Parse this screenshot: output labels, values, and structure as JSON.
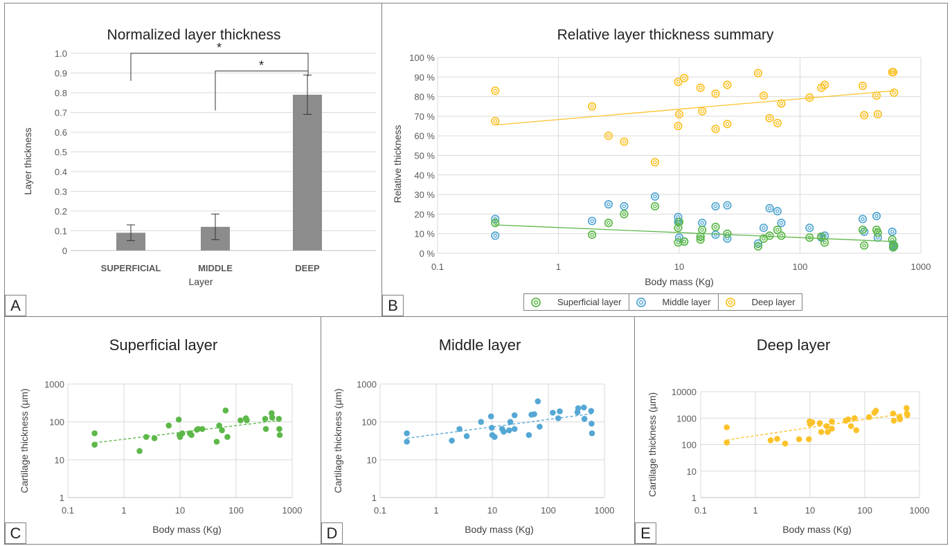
{
  "panels": {
    "A": {
      "letter": "A"
    },
    "B": {
      "letter": "B"
    },
    "C": {
      "letter": "C"
    },
    "D": {
      "letter": "D"
    },
    "E": {
      "letter": "E"
    }
  },
  "colors": {
    "superficial": "#5db84a",
    "middle": "#55a7d4",
    "deep": "#fcc22a",
    "bar": "#8c8c8c",
    "grid": "#d9d9d9"
  },
  "chart_data": [
    {
      "id": "A",
      "type": "bar",
      "title": "Normalized layer thickness",
      "xlabel": "Layer",
      "ylabel": "Layer thickness",
      "categories": [
        "SUPERFICIAL",
        "MIDDLE",
        "DEEP"
      ],
      "values": [
        0.09,
        0.12,
        0.79
      ],
      "error": [
        0.04,
        0.065,
        0.1
      ],
      "ylim": [
        0,
        1.0
      ],
      "yticks": [
        "0",
        "0.1",
        "0.2",
        "0.3",
        "0.4",
        "0.5",
        "0.6",
        "0.7",
        "0.8",
        "0.9",
        "1.0"
      ],
      "significance": [
        {
          "from": "SUPERFICIAL",
          "to": "DEEP",
          "label": "*"
        },
        {
          "from": "MIDDLE",
          "to": "DEEP",
          "label": "*"
        }
      ],
      "grid": true
    },
    {
      "id": "B",
      "type": "scatter",
      "title": "Relative layer thickness summary",
      "xlabel": "Body mass (Kg)",
      "ylabel": "Relative thickness",
      "xscale": "log",
      "xlim": [
        0.1,
        1000
      ],
      "xticks": [
        "0.1",
        "1",
        "10",
        "100",
        "1000"
      ],
      "ylim": [
        0,
        100
      ],
      "yticks": [
        "0 %",
        "10 %",
        "20 %",
        "30 %",
        "40 %",
        "50 %",
        "60 %",
        "70 %",
        "80 %",
        "90 %",
        "100 %"
      ],
      "legend_position": "bottom",
      "series": [
        {
          "name": "Superficial layer",
          "trend": [
            [
              0.3,
              14.5
            ],
            [
              600,
              6
            ]
          ],
          "points": [
            [
              0.3,
              15.5
            ],
            [
              1.9,
              9.5
            ],
            [
              2.6,
              15.5
            ],
            [
              3.5,
              20
            ],
            [
              6.3,
              24
            ],
            [
              9.8,
              13
            ],
            [
              9.8,
              5.5
            ],
            [
              10,
              16
            ],
            [
              11,
              6
            ],
            [
              15,
              7
            ],
            [
              15,
              8.5
            ],
            [
              15.5,
              12
            ],
            [
              20,
              13.5
            ],
            [
              25,
              10
            ],
            [
              45,
              3.5
            ],
            [
              50,
              7.5
            ],
            [
              56,
              9
            ],
            [
              65,
              12
            ],
            [
              70,
              9
            ],
            [
              120,
              8
            ],
            [
              150,
              8.5
            ],
            [
              160,
              5.5
            ],
            [
              330,
              12
            ],
            [
              340,
              4
            ],
            [
              430,
              12
            ],
            [
              440,
              10.5
            ],
            [
              580,
              7
            ],
            [
              590,
              3
            ],
            [
              600,
              4
            ]
          ]
        },
        {
          "name": "Middle layer",
          "points": [
            [
              0.3,
              17.5
            ],
            [
              0.3,
              9
            ],
            [
              1.9,
              16.5
            ],
            [
              2.6,
              25
            ],
            [
              3.5,
              24
            ],
            [
              6.3,
              29
            ],
            [
              9.8,
              18.5
            ],
            [
              9.8,
              16
            ],
            [
              10,
              8
            ],
            [
              11,
              6
            ],
            [
              15,
              8.5
            ],
            [
              15.5,
              15.5
            ],
            [
              20,
              24
            ],
            [
              20,
              9.5
            ],
            [
              25,
              24.5
            ],
            [
              25,
              7.5
            ],
            [
              45,
              5
            ],
            [
              50,
              13
            ],
            [
              56,
              23
            ],
            [
              65,
              21.5
            ],
            [
              70,
              15.5
            ],
            [
              120,
              13
            ],
            [
              150,
              8
            ],
            [
              160,
              9
            ],
            [
              330,
              17.5
            ],
            [
              340,
              11
            ],
            [
              430,
              19
            ],
            [
              440,
              8
            ],
            [
              580,
              11
            ],
            [
              590,
              4.5
            ],
            [
              600,
              3.5
            ]
          ]
        },
        {
          "name": "Deep layer",
          "trend": [
            [
              0.3,
              65.5
            ],
            [
              600,
              83
            ]
          ],
          "points": [
            [
              0.3,
              83
            ],
            [
              0.3,
              67.5
            ],
            [
              1.9,
              75
            ],
            [
              2.6,
              60
            ],
            [
              3.5,
              57
            ],
            [
              6.3,
              46.5
            ],
            [
              9.8,
              87.5
            ],
            [
              9.8,
              65
            ],
            [
              10,
              71
            ],
            [
              11,
              89.5
            ],
            [
              15,
              84.5
            ],
            [
              15.5,
              72.5
            ],
            [
              20,
              81.5
            ],
            [
              20,
              63.5
            ],
            [
              25,
              86
            ],
            [
              25,
              66
            ],
            [
              45,
              92
            ],
            [
              50,
              80.5
            ],
            [
              56,
              69
            ],
            [
              65,
              66.5
            ],
            [
              70,
              76.5
            ],
            [
              120,
              79.5
            ],
            [
              150,
              84.5
            ],
            [
              160,
              86
            ],
            [
              330,
              85.5
            ],
            [
              340,
              70.5
            ],
            [
              430,
              80.5
            ],
            [
              440,
              71
            ],
            [
              580,
              92.5
            ],
            [
              590,
              92.5
            ],
            [
              600,
              82
            ]
          ]
        }
      ],
      "grid": true
    },
    {
      "id": "C",
      "type": "scatter",
      "title": "Superficial layer",
      "xlabel": "Body mass (Kg)",
      "ylabel": "Cartilage thickness (µm)",
      "xscale": "log",
      "yscale": "log",
      "xlim": [
        0.1,
        1000
      ],
      "ylim": [
        1,
        1000
      ],
      "xticks": [
        "0.1",
        "1",
        "10",
        "100",
        "1000"
      ],
      "yticks": [
        "1",
        "10",
        "100",
        "1000"
      ],
      "trend": [
        [
          0.3,
          28
        ],
        [
          600,
          110
        ]
      ],
      "points": [
        [
          0.3,
          50
        ],
        [
          0.3,
          25
        ],
        [
          1.9,
          17
        ],
        [
          2.5,
          40
        ],
        [
          3.5,
          37
        ],
        [
          6.3,
          80
        ],
        [
          9.5,
          115
        ],
        [
          9.8,
          45
        ],
        [
          10,
          40
        ],
        [
          11,
          50
        ],
        [
          15,
          50
        ],
        [
          16,
          45
        ],
        [
          20,
          62
        ],
        [
          21,
          65
        ],
        [
          25,
          65
        ],
        [
          45,
          30
        ],
        [
          50,
          80
        ],
        [
          56,
          60
        ],
        [
          65,
          200
        ],
        [
          70,
          40
        ],
        [
          120,
          110
        ],
        [
          150,
          125
        ],
        [
          155,
          110
        ],
        [
          330,
          120
        ],
        [
          340,
          65
        ],
        [
          430,
          170
        ],
        [
          440,
          130
        ],
        [
          580,
          120
        ],
        [
          590,
          65
        ],
        [
          600,
          45
        ]
      ],
      "grid": true
    },
    {
      "id": "D",
      "type": "scatter",
      "title": "Middle layer",
      "xlabel": "Body mass (Kg)",
      "ylabel": "Cartilage thickness (µm)",
      "xscale": "log",
      "yscale": "log",
      "xlim": [
        0.1,
        1000
      ],
      "ylim": [
        1,
        1000
      ],
      "xticks": [
        "0.1",
        "1",
        "10",
        "100",
        "1000"
      ],
      "yticks": [
        "1",
        "10",
        "100",
        "1000"
      ],
      "trend": [
        [
          0.3,
          37
        ],
        [
          600,
          165
        ]
      ],
      "points": [
        [
          0.3,
          50
        ],
        [
          0.3,
          30
        ],
        [
          1.9,
          32
        ],
        [
          2.6,
          65
        ],
        [
          3.5,
          42
        ],
        [
          6.3,
          100
        ],
        [
          9.5,
          140
        ],
        [
          9.8,
          70
        ],
        [
          10,
          45
        ],
        [
          11,
          40
        ],
        [
          15,
          65
        ],
        [
          16,
          55
        ],
        [
          20,
          60
        ],
        [
          21,
          100
        ],
        [
          25,
          150
        ],
        [
          25,
          65
        ],
        [
          45,
          45
        ],
        [
          50,
          155
        ],
        [
          56,
          160
        ],
        [
          65,
          350
        ],
        [
          70,
          75
        ],
        [
          120,
          175
        ],
        [
          150,
          125
        ],
        [
          160,
          190
        ],
        [
          330,
          180
        ],
        [
          340,
          230
        ],
        [
          430,
          240
        ],
        [
          440,
          120
        ],
        [
          580,
          195
        ],
        [
          590,
          90
        ],
        [
          600,
          50
        ]
      ],
      "grid": true
    },
    {
      "id": "E",
      "type": "scatter",
      "title": "Deep layer",
      "xlabel": "Body mass (Kg)",
      "ylabel": "Cartilage thickness (µm)",
      "xscale": "log",
      "yscale": "log",
      "xlim": [
        0.1,
        1000
      ],
      "ylim": [
        1,
        10000
      ],
      "xticks": [
        "0.1",
        "1",
        "10",
        "100",
        "1000"
      ],
      "yticks": [
        "1",
        "10",
        "100",
        "1000",
        "10000"
      ],
      "trend": [
        [
          0.3,
          150
        ],
        [
          600,
          1550
        ]
      ],
      "points": [
        [
          0.3,
          450
        ],
        [
          0.3,
          120
        ],
        [
          1.9,
          145
        ],
        [
          2.5,
          165
        ],
        [
          3.5,
          110
        ],
        [
          6.3,
          160
        ],
        [
          9.5,
          160
        ],
        [
          9.8,
          750
        ],
        [
          10,
          600
        ],
        [
          11,
          700
        ],
        [
          15,
          650
        ],
        [
          16,
          300
        ],
        [
          20,
          500
        ],
        [
          21,
          300
        ],
        [
          25,
          750
        ],
        [
          25,
          400
        ],
        [
          45,
          800
        ],
        [
          50,
          900
        ],
        [
          56,
          500
        ],
        [
          65,
          1000
        ],
        [
          70,
          350
        ],
        [
          120,
          1100
        ],
        [
          150,
          1600
        ],
        [
          160,
          1900
        ],
        [
          330,
          1500
        ],
        [
          340,
          800
        ],
        [
          430,
          1100
        ],
        [
          440,
          900
        ],
        [
          580,
          2400
        ],
        [
          590,
          1500
        ],
        [
          600,
          1300
        ]
      ],
      "grid": true
    }
  ]
}
